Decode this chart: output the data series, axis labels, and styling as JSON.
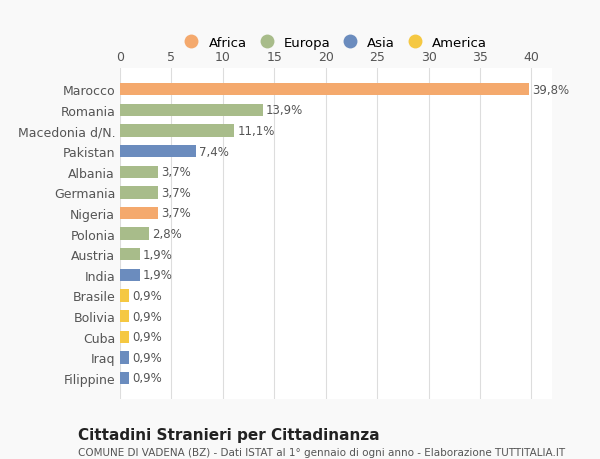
{
  "countries": [
    "Marocco",
    "Romania",
    "Macedonia d/N.",
    "Pakistan",
    "Albania",
    "Germania",
    "Nigeria",
    "Polonia",
    "Austria",
    "India",
    "Brasile",
    "Bolivia",
    "Cuba",
    "Iraq",
    "Filippine"
  ],
  "values": [
    39.8,
    13.9,
    11.1,
    7.4,
    3.7,
    3.7,
    3.7,
    2.8,
    1.9,
    1.9,
    0.9,
    0.9,
    0.9,
    0.9,
    0.9
  ],
  "labels": [
    "39,8%",
    "13,9%",
    "11,1%",
    "7,4%",
    "3,7%",
    "3,7%",
    "3,7%",
    "2,8%",
    "1,9%",
    "1,9%",
    "0,9%",
    "0,9%",
    "0,9%",
    "0,9%",
    "0,9%"
  ],
  "colors": [
    "#F4A96D",
    "#A8BC8A",
    "#A8BC8A",
    "#6B8CBE",
    "#A8BC8A",
    "#A8BC8A",
    "#F4A96D",
    "#A8BC8A",
    "#A8BC8A",
    "#6B8CBE",
    "#F5C842",
    "#F5C842",
    "#F5C842",
    "#6B8CBE",
    "#6B8CBE"
  ],
  "legend_names": [
    "Africa",
    "Europa",
    "Asia",
    "America"
  ],
  "legend_colors": [
    "#F4A96D",
    "#A8BC8A",
    "#6B8CBE",
    "#F5C842"
  ],
  "title": "Cittadini Stranieri per Cittadinanza",
  "subtitle": "COMUNE DI VADENA (BZ) - Dati ISTAT al 1° gennaio di ogni anno - Elaborazione TUTTITALIA.IT",
  "xlim": [
    0,
    42
  ],
  "xticks": [
    0,
    5,
    10,
    15,
    20,
    25,
    30,
    35,
    40
  ],
  "bg_color": "#f9f9f9",
  "bar_bg_color": "#ffffff",
  "grid_color": "#dddddd",
  "text_color": "#555555",
  "title_color": "#222222",
  "subtitle_color": "#555555"
}
